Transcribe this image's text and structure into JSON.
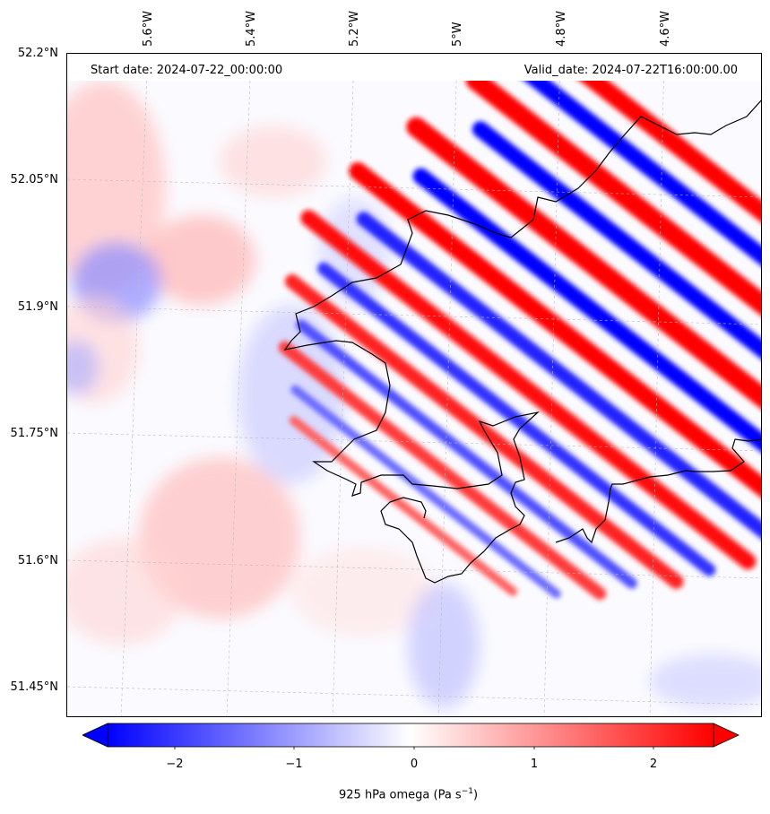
{
  "map": {
    "start_date": "Start date: 2024-07-22_00:00:00",
    "valid_date": "Valid_date: 2024-07-22T16:00:00.00"
  },
  "axes": {
    "lon_labels": [
      "5.6°W",
      "5.4°W",
      "5.2°W",
      "5°W",
      "4.8°W",
      "4.6°W"
    ],
    "lat_labels": [
      "52.2°N",
      "52.05°N",
      "51.9°N",
      "51.75°N",
      "51.6°N",
      "51.45°N"
    ]
  },
  "colorbar": {
    "ticks": [
      "−2",
      "−1",
      "0",
      "1",
      "2"
    ],
    "label": "925 hPa omega (Pa s",
    "label_exponent": "−1",
    "label_close": ")",
    "min": -2.5,
    "max": 2.5,
    "negative_color": "#0000ff",
    "positive_color": "#ff0000",
    "extend": "both"
  },
  "colors": {
    "coastline": "#000000",
    "gridline": "#bbbbbb"
  }
}
